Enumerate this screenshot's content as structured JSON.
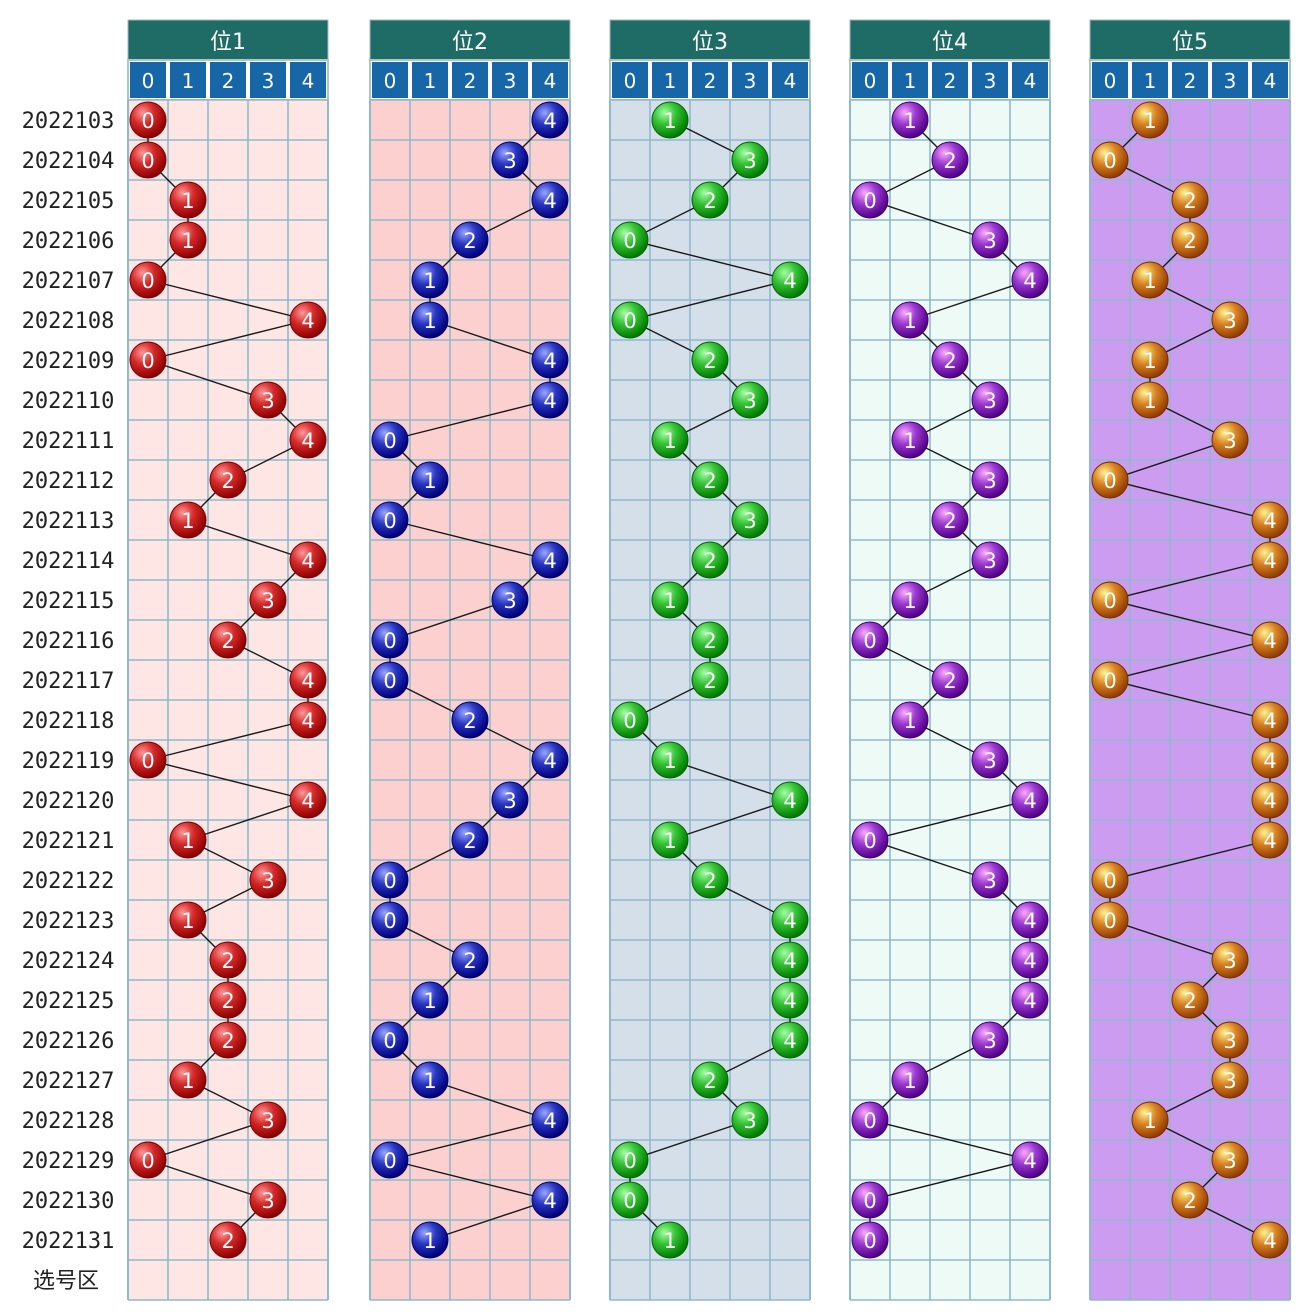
{
  "chart_data": {
    "type": "table",
    "issues": [
      "2022103",
      "2022104",
      "2022105",
      "2022106",
      "2022107",
      "2022108",
      "2022109",
      "2022110",
      "2022111",
      "2022112",
      "2022113",
      "2022114",
      "2022115",
      "2022116",
      "2022117",
      "2022118",
      "2022119",
      "2022120",
      "2022121",
      "2022122",
      "2022123",
      "2022124",
      "2022125",
      "2022126",
      "2022127",
      "2022128",
      "2022129",
      "2022130",
      "2022131"
    ],
    "footer_label": "选号区",
    "digits": [
      "0",
      "1",
      "2",
      "3",
      "4"
    ],
    "positions": [
      {
        "title": "位1",
        "color": "#d42a2a",
        "background": "#fde6e3",
        "values": [
          0,
          0,
          1,
          1,
          0,
          4,
          0,
          3,
          4,
          2,
          1,
          4,
          3,
          2,
          4,
          4,
          0,
          4,
          1,
          3,
          1,
          2,
          2,
          2,
          1,
          3,
          0,
          3,
          2
        ]
      },
      {
        "title": "位2",
        "color": "#2a37c2",
        "background": "#fbd0cf",
        "values": [
          4,
          3,
          4,
          2,
          1,
          1,
          4,
          4,
          0,
          1,
          0,
          4,
          3,
          0,
          0,
          2,
          4,
          3,
          2,
          0,
          0,
          2,
          1,
          0,
          1,
          4,
          0,
          4,
          1
        ]
      },
      {
        "title": "位3",
        "color": "#36c236",
        "background": "#d4dfea",
        "values": [
          1,
          3,
          2,
          0,
          4,
          0,
          2,
          3,
          1,
          2,
          3,
          2,
          1,
          2,
          2,
          0,
          1,
          4,
          1,
          2,
          4,
          4,
          4,
          4,
          2,
          3,
          0,
          0,
          1
        ]
      },
      {
        "title": "位4",
        "color": "#9a3ad0",
        "background": "#eefaf6",
        "values": [
          1,
          2,
          0,
          3,
          4,
          1,
          2,
          3,
          1,
          3,
          2,
          3,
          1,
          0,
          2,
          1,
          3,
          4,
          0,
          3,
          4,
          4,
          4,
          3,
          1,
          0,
          4,
          0,
          0
        ]
      },
      {
        "title": "位5",
        "color": "#d98424",
        "background": "#cc9cf0",
        "values": [
          1,
          0,
          2,
          2,
          1,
          3,
          1,
          1,
          3,
          0,
          4,
          4,
          0,
          4,
          0,
          4,
          4,
          4,
          4,
          0,
          0,
          3,
          2,
          3,
          3,
          1,
          3,
          2,
          4
        ]
      }
    ]
  }
}
